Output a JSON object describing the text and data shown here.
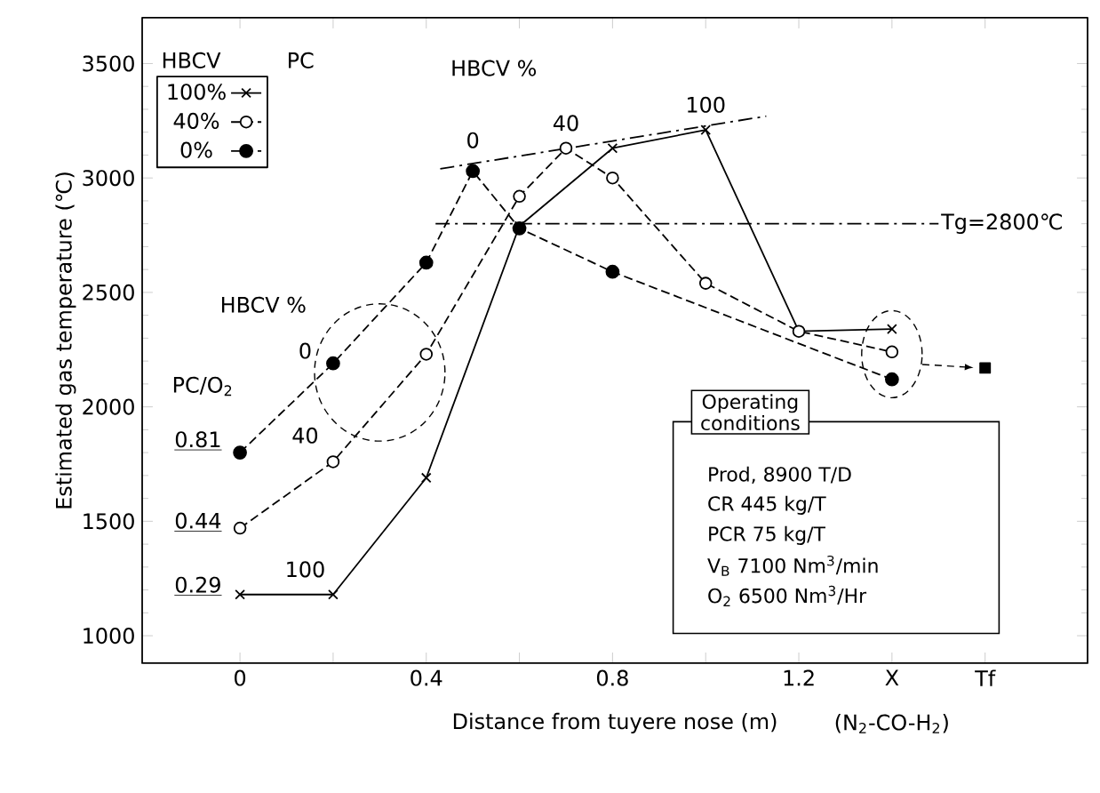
{
  "chart_data": {
    "type": "line",
    "xlabel": "Distance from tuyere nose (m)",
    "ylabel": "Estimated gas temperature (℃)",
    "legend_title": "HBCV",
    "legend": "top left",
    "xlim": [
      -0.21,
      1.82
    ],
    "ylim": [
      880,
      3700
    ],
    "xticks": [
      0,
      {
        "value": 0.2,
        "label": null
      },
      0.4,
      {
        "value": 0.6,
        "label": null
      },
      0.8,
      {
        "value": 1.0,
        "label": null
      },
      1.2,
      {
        "value": 1.4,
        "label": "X"
      },
      {
        "value": 1.6,
        "label": "Tf"
      }
    ],
    "yticks": [
      1000,
      1500,
      2000,
      2500,
      3000,
      3500
    ],
    "ref_lines": [
      {
        "axis": "y",
        "value": 2800,
        "label": "Tg=2800℃",
        "line_style": "dashdot"
      }
    ],
    "series": [
      {
        "name": "100%",
        "color": "#000000",
        "marker": "cross",
        "line_style": "solid",
        "x": [
          0,
          0.2,
          0.4,
          0.6,
          0.8,
          1.0,
          1.2,
          1.4
        ],
        "values": [
          1180,
          1180,
          1690,
          2790,
          3130,
          3210,
          2330,
          2340
        ]
      },
      {
        "name": "40%",
        "color": "#000000",
        "marker": "open circle",
        "line_style": "dashed",
        "x": [
          0,
          0.2,
          0.4,
          0.6,
          0.7,
          0.8,
          1.0,
          1.2,
          1.4
        ],
        "values": [
          1470,
          1760,
          2230,
          2920,
          3130,
          3000,
          2540,
          2330,
          2240
        ]
      },
      {
        "name": "0%",
        "color": "#000000",
        "marker": "circle",
        "line_style": "dashed",
        "x": [
          0,
          0.2,
          0.4,
          0.5,
          0.6,
          0.8,
          1.4
        ],
        "values": [
          1800,
          2190,
          2630,
          3030,
          2780,
          2590,
          2120
        ]
      },
      {
        "type": "line",
        "color": "#000000",
        "marker": "none",
        "line_style": "dashdot",
        "x": [
          0.43,
          1.13
        ],
        "values": [
          3040,
          3270
        ]
      },
      {
        "type": "scatter",
        "color": "#000000",
        "marker": "square",
        "x": [
          1.6
        ],
        "values": [
          2170
        ]
      }
    ],
    "annotations": [
      "HBCV %",
      "0",
      "40",
      "100",
      "HBCV %",
      "0",
      "40",
      "100",
      "PC/O$_{2}$",
      "0.81",
      "0.44",
      "0.29",
      "PC",
      "Operating conditions",
      "Prod, 8900 T/D",
      "CR 445 kg/T",
      "PCR 75 kg/T",
      "V$_{B}$ 7100 Nm$^{3}$/min",
      "O$_{2}$ 6500 Nm$^{3}$/Hr",
      "(N$_{2}$-CO-H$_{2}$)"
    ]
  }
}
